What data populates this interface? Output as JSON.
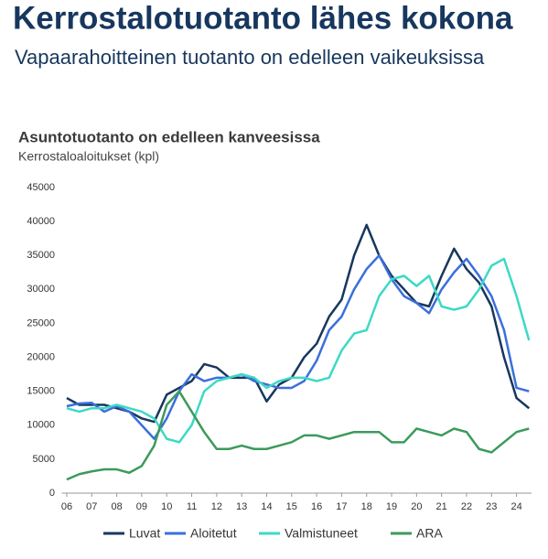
{
  "heading": "Kerrostalotuotanto lähes kokona",
  "subheading": "Vapaarahoitteinen tuotanto on edelleen vaikeuksissa",
  "chart_data": {
    "type": "line",
    "title": "Asuntotuotanto on edelleen kanveesissa",
    "y_label": "Kerrostaloaloitukset (kpl)",
    "x": [
      6,
      6.5,
      7,
      7.5,
      8,
      8.5,
      9,
      9.5,
      10,
      10.5,
      11,
      11.5,
      12,
      12.5,
      13,
      13.5,
      14,
      14.5,
      15,
      15.5,
      16,
      16.5,
      17,
      17.5,
      18,
      18.5,
      19,
      19.5,
      20,
      20.5,
      21,
      21.5,
      22,
      22.5,
      23,
      23.5,
      24,
      24.5
    ],
    "series": [
      {
        "name": "Luvat",
        "color": "#17375e",
        "values": [
          14000,
          13000,
          13000,
          13000,
          12500,
          12000,
          11000,
          10500,
          14500,
          15500,
          16500,
          19000,
          18500,
          17000,
          17000,
          17000,
          13500,
          16000,
          17000,
          20000,
          22000,
          26000,
          28500,
          35000,
          39500,
          35000,
          32000,
          30000,
          28000,
          27500,
          32000,
          36000,
          33000,
          31000,
          27500,
          20000,
          14000,
          12500
        ]
      },
      {
        "name": "Aloitetut",
        "color": "#3b6fdc",
        "values": [
          12800,
          13200,
          13300,
          12000,
          12800,
          12000,
          10000,
          8000,
          11000,
          15000,
          17500,
          16500,
          17000,
          17000,
          17500,
          16500,
          16000,
          15500,
          15500,
          16500,
          19500,
          24000,
          26000,
          30000,
          33000,
          35000,
          31500,
          29000,
          28000,
          26500,
          30000,
          32500,
          34500,
          32000,
          29000,
          24000,
          15500,
          15000
        ]
      },
      {
        "name": "Valmistuneet",
        "color": "#3dd9c5",
        "values": [
          12500,
          12000,
          12500,
          12500,
          13000,
          12500,
          12000,
          11000,
          8000,
          7500,
          10000,
          15000,
          16500,
          17000,
          17500,
          17000,
          15500,
          16500,
          17000,
          17000,
          16500,
          17000,
          21000,
          23500,
          24000,
          29000,
          31500,
          32000,
          30500,
          32000,
          27500,
          27000,
          27500,
          30000,
          33500,
          34500,
          29000,
          22500
        ]
      },
      {
        "name": "ARA",
        "color": "#3c9a5c",
        "values": [
          2000,
          2800,
          3200,
          3500,
          3500,
          3000,
          4000,
          7000,
          13000,
          15000,
          12000,
          9000,
          6500,
          6500,
          7000,
          6500,
          6500,
          7000,
          7500,
          8500,
          8500,
          8000,
          8500,
          9000,
          9000,
          9000,
          7500,
          7500,
          9500,
          9000,
          8500,
          9500,
          9000,
          6500,
          6000,
          7500,
          9000,
          9500
        ]
      }
    ],
    "xlim": [
      5.8,
      24.6
    ],
    "xticks": [
      {
        "value": 6,
        "label": "06"
      },
      {
        "value": 7,
        "label": "07"
      },
      {
        "value": 8,
        "label": "08"
      },
      {
        "value": 9,
        "label": "09"
      },
      10,
      11,
      12,
      13,
      14,
      15,
      16,
      17,
      18,
      19,
      20,
      21,
      22,
      23,
      24
    ],
    "ylim": [
      0,
      45000
    ],
    "yticks": [
      0,
      5000,
      10000,
      15000,
      20000,
      25000,
      30000,
      35000,
      40000,
      45000
    ],
    "grid": false,
    "legend": "bottom"
  }
}
